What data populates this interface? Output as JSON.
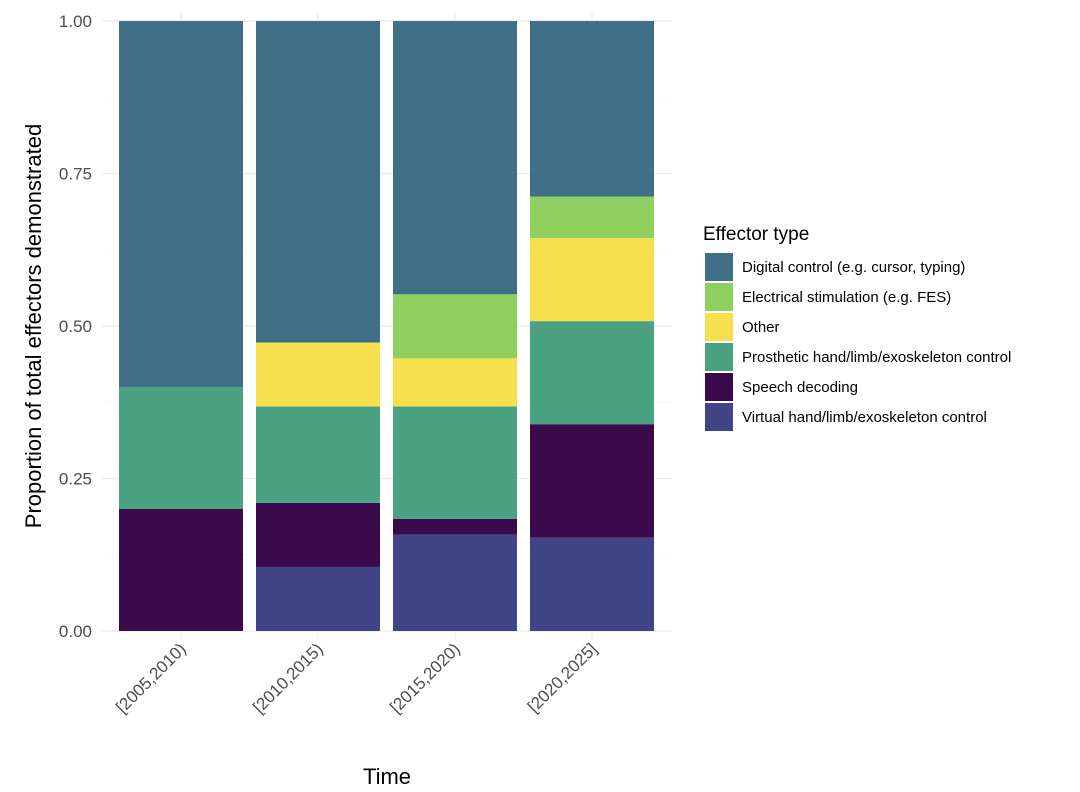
{
  "chart_data": {
    "type": "bar",
    "stacked": true,
    "title": "",
    "xlabel": "Time",
    "ylabel": "Proportion of total effectors demonstrated",
    "ylim": [
      0,
      1
    ],
    "y_ticks": [
      "0.00",
      "0.25",
      "0.50",
      "0.75",
      "1.00"
    ],
    "y_tick_values": [
      0,
      0.25,
      0.5,
      0.75,
      1
    ],
    "categories": [
      "[2005,2010)",
      "[2010,2015)",
      "[2015,2020)",
      "[2020,2025]"
    ],
    "legend_title": "Effector type",
    "legend_position": "right",
    "series": [
      {
        "name": "Virtual hand/limb/exoskeleton control",
        "color": "#414487",
        "values": [
          0.0,
          0.105,
          0.158,
          0.153
        ]
      },
      {
        "name": "Speech decoding",
        "color": "#3b0a4a",
        "values": [
          0.2,
          0.105,
          0.026,
          0.186
        ]
      },
      {
        "name": "Prosthetic hand/limb/exoskeleton control",
        "color": "#4aa283",
        "values": [
          0.2,
          0.158,
          0.184,
          0.169
        ]
      },
      {
        "name": "Other",
        "color": "#f6e04e",
        "values": [
          0.0,
          0.105,
          0.079,
          0.136
        ]
      },
      {
        "name": "Electrical stimulation (e.g. FES)",
        "color": "#8fcf5f",
        "values": [
          0.0,
          0.0,
          0.105,
          0.068
        ]
      },
      {
        "name": "Digital control (e.g. cursor, typing)",
        "color": "#3f7087",
        "values": [
          0.6,
          0.527,
          0.448,
          0.288
        ]
      }
    ],
    "legend_order": [
      "Digital control (e.g. cursor, typing)",
      "Electrical stimulation (e.g. FES)",
      "Other",
      "Prosthetic hand/limb/exoskeleton control",
      "Speech decoding",
      "Virtual hand/limb/exoskeleton control"
    ]
  }
}
